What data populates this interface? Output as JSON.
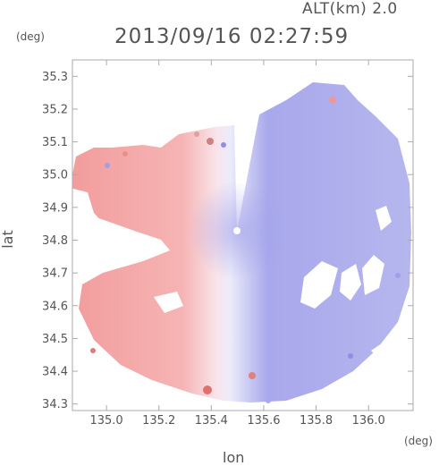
{
  "header": {
    "altitude": "ALT(km) 2.0",
    "timestamp": "2013/09/16 02:27:59"
  },
  "chart_data": {
    "type": "heatmap",
    "title": "2013/09/16 02:27:59",
    "subtitle": "ALT(km) 2.0",
    "xlabel": "lon",
    "ylabel": "lat",
    "x_unit": "(deg)",
    "y_unit": "(deg)",
    "xlim": [
      134.87,
      136.17
    ],
    "ylim": [
      34.28,
      35.35
    ],
    "x_ticks": [
      "135.0",
      "135.2",
      "135.4",
      "135.6",
      "135.8",
      "136.0"
    ],
    "x_tick_values": [
      135.0,
      135.2,
      135.4,
      135.6,
      135.8,
      136.0
    ],
    "y_ticks": [
      "34.3",
      "34.4",
      "34.5",
      "34.6",
      "34.7",
      "34.8",
      "34.9",
      "35.0",
      "35.1",
      "35.2",
      "35.3"
    ],
    "y_tick_values": [
      34.3,
      34.4,
      34.5,
      34.6,
      34.7,
      34.8,
      34.9,
      35.0,
      35.1,
      35.2,
      35.3
    ],
    "radar_center": {
      "lon": 135.53,
      "lat": 34.82
    },
    "grid": false,
    "colors": {
      "receding": "#f08080",
      "approaching": "#8080f0",
      "neutral": "#f4f4fa",
      "axis": "#aaaaaa",
      "text": "#555555"
    }
  }
}
